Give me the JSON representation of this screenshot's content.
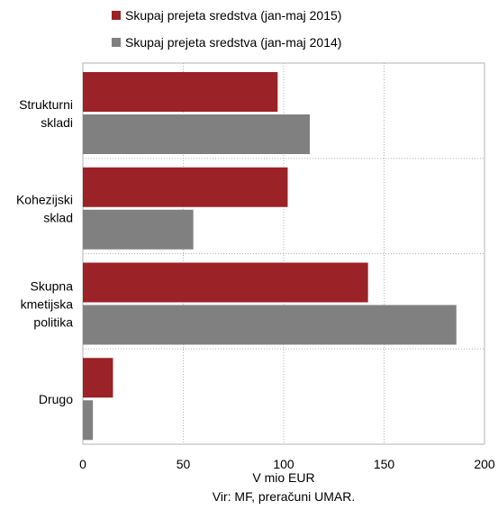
{
  "chart_data": {
    "type": "bar",
    "orientation": "horizontal",
    "categories": [
      [
        "Strukturni",
        "skladi"
      ],
      [
        "Kohezijski",
        "sklad"
      ],
      [
        "Skupna",
        "kmetijska",
        "politika"
      ],
      [
        "Drugo"
      ]
    ],
    "series": [
      {
        "name": "Skupaj prejeta sredstva (jan-maj 2015)",
        "color": "#9b2226",
        "values": [
          97,
          102,
          142,
          15
        ]
      },
      {
        "name": "Skupaj prejeta sredstva (jan-maj 2014)",
        "color": "#808080",
        "values": [
          113,
          55,
          186,
          5
        ]
      }
    ],
    "xlabel": "V mio EUR",
    "source": "Vir: MF, preračuni UMAR.",
    "xlim": [
      0,
      200
    ],
    "xticks": [
      0,
      50,
      100,
      150,
      200
    ],
    "grid": true,
    "legend_position": "top"
  }
}
